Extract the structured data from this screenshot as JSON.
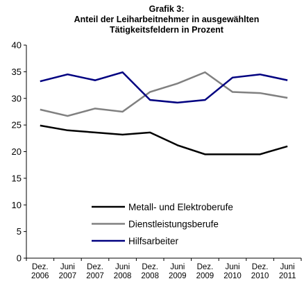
{
  "chart_data": {
    "type": "line",
    "title": [
      "Grafik 3:",
      "Anteil der Leiharbeitnehmer in ausgewählten",
      "Tätigkeitsfeldern in Prozent"
    ],
    "categories": [
      "Dez. 2006",
      "Juni 2007",
      "Dez. 2007",
      "Juni 2008",
      "Dez. 2008",
      "Juni 2009",
      "Dez. 2009",
      "Juni 2010",
      "Dez. 2010",
      "Juni 2011"
    ],
    "series": [
      {
        "name": "Metall- und Elektroberufe",
        "color": "#000000",
        "values": [
          24.9,
          24.0,
          23.6,
          23.2,
          23.6,
          21.2,
          19.5,
          19.5,
          19.5,
          21.0
        ]
      },
      {
        "name": "Dienstleistungsberufe",
        "color": "#808080",
        "values": [
          27.9,
          26.7,
          28.1,
          27.5,
          31.2,
          32.8,
          34.9,
          31.2,
          31.0,
          30.1
        ]
      },
      {
        "name": "Hilfsarbeiter",
        "color": "#000080",
        "values": [
          33.2,
          34.5,
          33.4,
          34.9,
          29.7,
          29.2,
          29.7,
          33.9,
          34.5,
          33.4
        ]
      }
    ],
    "ylim": [
      0,
      40
    ],
    "yticks": [
      0,
      5,
      10,
      15,
      20,
      25,
      30,
      35,
      40
    ],
    "grid": false,
    "legend": "lower center"
  }
}
